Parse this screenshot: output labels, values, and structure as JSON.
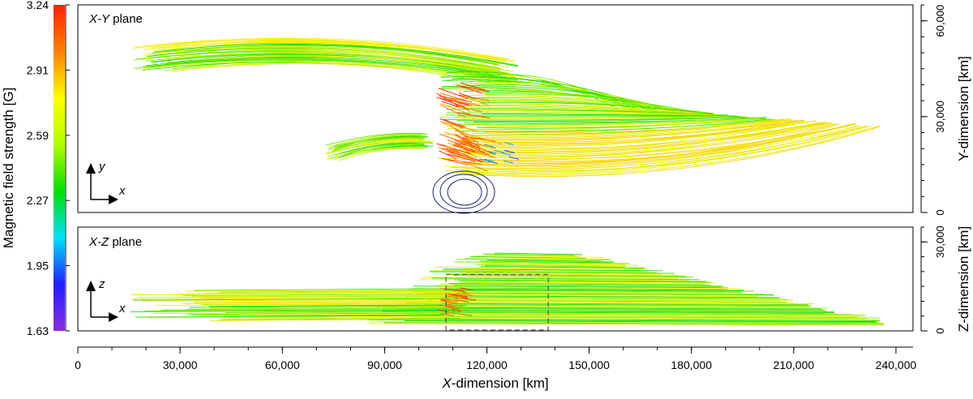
{
  "chart_data": {
    "type": "field-line-projection",
    "colorbar": {
      "label": "Magnetic field strength [G]",
      "ticks": [
        "1.63",
        "1.95",
        "2.27",
        "2.59",
        "2.91",
        "3.24"
      ],
      "range": [
        1.63,
        3.24
      ],
      "colors": [
        "#8a2be2",
        "#2020ff",
        "#00e0ff",
        "#00e000",
        "#b0ff00",
        "#ffff00",
        "#ff8000",
        "#ff2000"
      ]
    },
    "x_axis": {
      "label": "X-dimension [km]",
      "range": [
        0,
        245000
      ],
      "ticks": [
        0,
        30000,
        60000,
        90000,
        120000,
        150000,
        180000,
        210000,
        240000
      ],
      "tick_labels": [
        "0",
        "30,000",
        "60,000",
        "90,000",
        "120,000",
        "150,000",
        "180,000",
        "210,000",
        "240,000"
      ]
    },
    "panels": [
      {
        "name": "X-Y plane",
        "title_italic": "X-Y",
        "title_rest": " plane",
        "axis_label": "Y-dimension [km]",
        "range": [
          0,
          65000
        ],
        "tick_labels": [
          "0",
          "30,000",
          "60,000"
        ],
        "ticks": [
          0,
          30000,
          60000
        ],
        "axes_glyph": [
          "y",
          "x"
        ]
      },
      {
        "name": "X-Z plane",
        "title_italic": "X-Z",
        "title_rest": " plane",
        "axis_label": "Z-dimension [km]",
        "range": [
          0,
          35000
        ],
        "tick_labels": [
          "0",
          "30,000"
        ],
        "ticks": [
          0,
          30000
        ],
        "axes_glyph": [
          "z",
          "x"
        ],
        "dashed_box_x": [
          108000,
          138000
        ],
        "dashed_box_z": [
          0,
          19000
        ]
      }
    ]
  }
}
